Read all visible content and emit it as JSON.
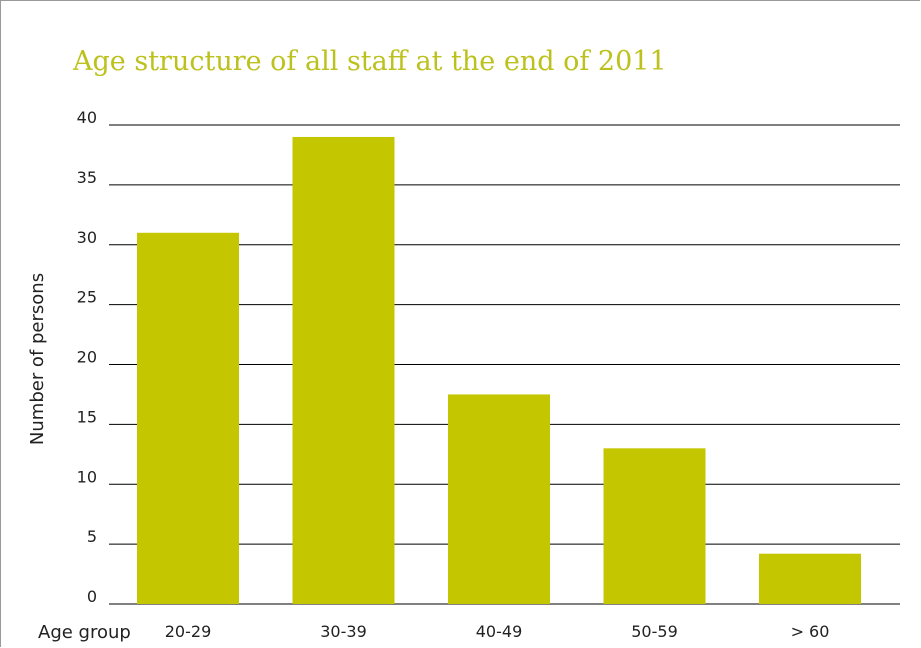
{
  "colors": {
    "bar": "#c4c600",
    "title": "#bcc11c",
    "gridline": "#000000",
    "text": "#222222"
  },
  "chart_data": {
    "type": "bar",
    "title": "Age structure of all staff at the end of 2011",
    "xlabel": "Age group",
    "ylabel": "Number of persons",
    "categories": [
      "20-29",
      "30-39",
      "40-49",
      "50-59",
      "> 60"
    ],
    "values": [
      31,
      39,
      17.5,
      13,
      4.2
    ],
    "ylim": [
      0,
      40
    ],
    "yticks": [
      "0",
      "5",
      "10",
      "15",
      "20",
      "25",
      "30",
      "35",
      "40"
    ],
    "grid": true,
    "legend": "none"
  }
}
